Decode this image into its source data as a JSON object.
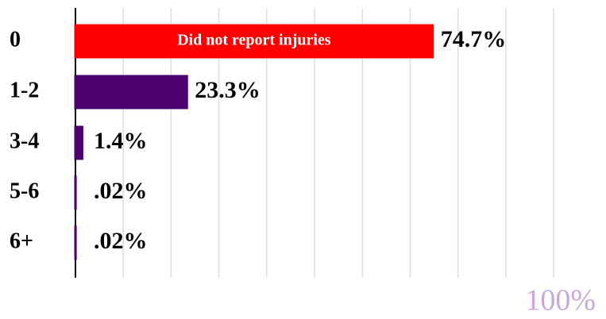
{
  "chart_data": {
    "type": "bar",
    "orientation": "horizontal",
    "categories": [
      "0",
      "1-2",
      "3-4",
      "5-6",
      "6+"
    ],
    "values": [
      74.7,
      23.3,
      1.4,
      0.02,
      0.02
    ],
    "value_labels": [
      "74.7%",
      "23.3%",
      "1.4%",
      ".02%",
      ".02%"
    ],
    "colors": [
      "#ff0000",
      "#4b006e",
      "#4b006e",
      "#4b006e",
      "#4b006e"
    ],
    "annotation": "Did not report injuries",
    "xlim": [
      0,
      100
    ],
    "xticks": [
      10,
      20,
      30,
      40,
      50,
      60,
      70,
      80,
      90,
      {
        "value": 100,
        "label": "100%"
      }
    ],
    "grid": true
  }
}
